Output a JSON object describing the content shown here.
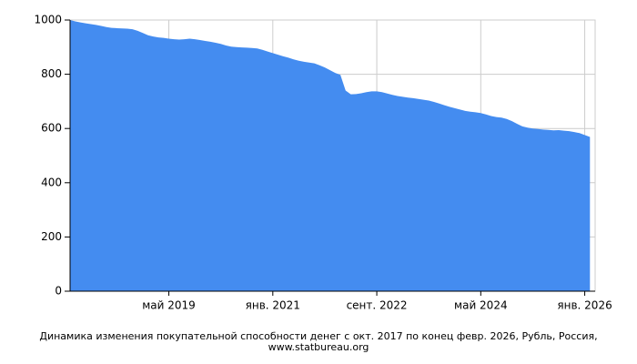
{
  "chart_data": {
    "type": "area",
    "caption": "Динамика изменения покупательной способности денег с окт. 2017 по конец февр. 2026, Рубль, Россия, www.statbureau.org",
    "x": [
      "2017-10",
      "2017-11",
      "2017-12",
      "2018-01",
      "2018-02",
      "2018-03",
      "2018-04",
      "2018-05",
      "2018-06",
      "2018-07",
      "2018-08",
      "2018-09",
      "2018-10",
      "2018-11",
      "2018-12",
      "2019-01",
      "2019-02",
      "2019-03",
      "2019-04",
      "2019-05",
      "2019-06",
      "2019-07",
      "2019-08",
      "2019-09",
      "2019-10",
      "2019-11",
      "2019-12",
      "2020-01",
      "2020-02",
      "2020-03",
      "2020-04",
      "2020-05",
      "2020-06",
      "2020-07",
      "2020-08",
      "2020-09",
      "2020-10",
      "2020-11",
      "2020-12",
      "2021-01",
      "2021-02",
      "2021-03",
      "2021-04",
      "2021-05",
      "2021-06",
      "2021-07",
      "2021-08",
      "2021-09",
      "2021-10",
      "2021-11",
      "2021-12",
      "2022-01",
      "2022-02",
      "2022-03",
      "2022-04",
      "2022-05",
      "2022-06",
      "2022-07",
      "2022-08",
      "2022-09",
      "2022-10",
      "2022-11",
      "2022-12",
      "2023-01",
      "2023-02",
      "2023-03",
      "2023-04",
      "2023-05",
      "2023-06",
      "2023-07",
      "2023-08",
      "2023-09",
      "2023-10",
      "2023-11",
      "2023-12",
      "2024-01",
      "2024-02",
      "2024-03",
      "2024-04",
      "2024-05",
      "2024-06",
      "2024-07",
      "2024-08",
      "2024-09",
      "2024-10",
      "2024-11",
      "2024-12",
      "2025-01",
      "2025-02",
      "2025-03",
      "2025-04",
      "2025-05",
      "2025-06",
      "2025-07",
      "2025-08",
      "2025-09",
      "2025-10",
      "2025-11",
      "2025-12",
      "2026-01",
      "2026-02"
    ],
    "values": [
      1000,
      995,
      991,
      988,
      985,
      982,
      978,
      974,
      971,
      970,
      969,
      968,
      966,
      960,
      952,
      944,
      939,
      936,
      934,
      931,
      929,
      928,
      929,
      931,
      929,
      926,
      923,
      920,
      916,
      912,
      906,
      902,
      900,
      899,
      898,
      897,
      895,
      890,
      884,
      878,
      872,
      866,
      861,
      855,
      850,
      846,
      843,
      840,
      833,
      825,
      815,
      805,
      798,
      740,
      726,
      727,
      730,
      734,
      737,
      737,
      734,
      729,
      724,
      720,
      717,
      714,
      712,
      709,
      706,
      703,
      698,
      692,
      686,
      680,
      675,
      670,
      665,
      662,
      660,
      657,
      652,
      646,
      642,
      640,
      635,
      627,
      617,
      608,
      603,
      600,
      598,
      596,
      595,
      593,
      594,
      592,
      590,
      587,
      583,
      576,
      569
    ],
    "color": "#448cf0",
    "xlim": [
      "2017-10",
      "2026-03"
    ],
    "xticks": [
      {
        "value": "2019-05",
        "label": "май 2019"
      },
      {
        "value": "2021-01",
        "label": "янв. 2021"
      },
      {
        "value": "2022-09",
        "label": "сент. 2022"
      },
      {
        "value": "2024-05",
        "label": "май 2024"
      },
      {
        "value": "2026-01",
        "label": "янв. 2026"
      }
    ],
    "ylim": [
      0,
      1000
    ],
    "yticks": [
      0,
      200,
      400,
      600,
      800,
      1000
    ],
    "grid": true
  }
}
